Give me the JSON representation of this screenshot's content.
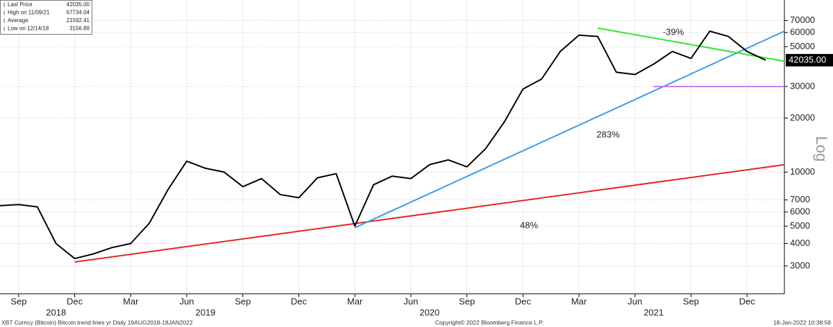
{
  "chart_data": {
    "type": "line",
    "x": [
      "2018-08",
      "2018-09",
      "2018-10",
      "2018-11",
      "2018-12",
      "2019-01",
      "2019-02",
      "2019-03",
      "2019-04",
      "2019-05",
      "2019-06",
      "2019-07",
      "2019-08",
      "2019-09",
      "2019-10",
      "2019-11",
      "2019-12",
      "2020-01",
      "2020-02",
      "2020-03",
      "2020-04",
      "2020-05",
      "2020-06",
      "2020-07",
      "2020-08",
      "2020-09",
      "2020-10",
      "2020-11",
      "2020-12",
      "2021-01",
      "2021-02",
      "2021-03",
      "2021-04",
      "2021-05",
      "2021-06",
      "2021-07",
      "2021-08",
      "2021-09",
      "2021-10",
      "2021-11",
      "2021-12",
      "2022-01"
    ],
    "series": [
      {
        "color": "#000000",
        "values": [
          6500,
          6600,
          6400,
          4000,
          3300,
          3500,
          3800,
          4000,
          5200,
          8000,
          11500,
          10500,
          10000,
          8300,
          9200,
          7500,
          7200,
          9300,
          9800,
          5000,
          8500,
          9500,
          9200,
          11000,
          11700,
          10700,
          13500,
          19000,
          29000,
          33000,
          47000,
          58000,
          57000,
          36000,
          35000,
          40000,
          47000,
          43000,
          61000,
          57000,
          47000,
          42035
        ]
      }
    ],
    "trend_lines": [
      {
        "color": "#e8231f",
        "x": [
          "2018-12",
          "2022-02"
        ],
        "values": [
          3156.89,
          11000
        ]
      },
      {
        "color": "#3b9be8",
        "x": [
          "2020-03",
          "2022-02"
        ],
        "values": [
          4900,
          61000
        ]
      },
      {
        "color": "#33e62a",
        "x": [
          "2021-04",
          "2022-02"
        ],
        "values": [
          63500,
          41500
        ]
      },
      {
        "color": "#c978e8",
        "x": [
          "2021-07",
          "2022-02"
        ],
        "values": [
          30000,
          30000
        ]
      }
    ],
    "annotations": [
      "-39%",
      "283%",
      "48%"
    ],
    "log_scale": true,
    "grid": true,
    "ylim": [
      2100,
      91000
    ],
    "yticks": [
      3000,
      4000,
      5000,
      6000,
      7000,
      10000,
      20000,
      30000,
      50000,
      60000,
      70000
    ],
    "y_axis_label": "Log",
    "xlim": [
      "2018-08",
      "2022-02"
    ],
    "xticks": [
      {
        "value": "2018-09",
        "label": "Sep"
      },
      {
        "value": "2018-12",
        "label": "Dec"
      },
      {
        "value": "2019-03",
        "label": "Mar"
      },
      {
        "value": "2019-06",
        "label": "Jun"
      },
      {
        "value": "2019-09",
        "label": "Sep"
      },
      {
        "value": "2019-12",
        "label": "Dec"
      },
      {
        "value": "2020-03",
        "label": "Mar"
      },
      {
        "value": "2020-06",
        "label": "Jun"
      },
      {
        "value": "2020-09",
        "label": "Sep"
      },
      {
        "value": "2020-12",
        "label": "Dec"
      },
      {
        "value": "2021-03",
        "label": "Mar"
      },
      {
        "value": "2021-06",
        "label": "Jun"
      },
      {
        "value": "2021-09",
        "label": "Sep"
      },
      {
        "value": "2021-12",
        "label": "Dec"
      }
    ],
    "year_labels": [
      {
        "value": "2018-11",
        "label": "2018"
      },
      {
        "value": "2019-07",
        "label": "2019"
      },
      {
        "value": "2020-07",
        "label": "2020"
      },
      {
        "value": "2021-07",
        "label": "2021"
      }
    ],
    "last_price_label": "42035.00",
    "legend": [
      {
        "label": "Last Price",
        "value": "42035.00"
      },
      {
        "label": "High on 11/09/21",
        "value": "67734.04"
      },
      {
        "label": "Average",
        "value": "21592.41"
      },
      {
        "label": "Low on 12/14/18",
        "value": "3156.89"
      }
    ],
    "footer": {
      "left": "XBT Curncy (Bitcoin) Bitcoin trend lines yr  Daily 19AUG2018-18JAN2022",
      "center": "Copyright© 2022 Bloomberg Finance L.P.",
      "right": "18-Jan-2022 10:38:58"
    }
  }
}
